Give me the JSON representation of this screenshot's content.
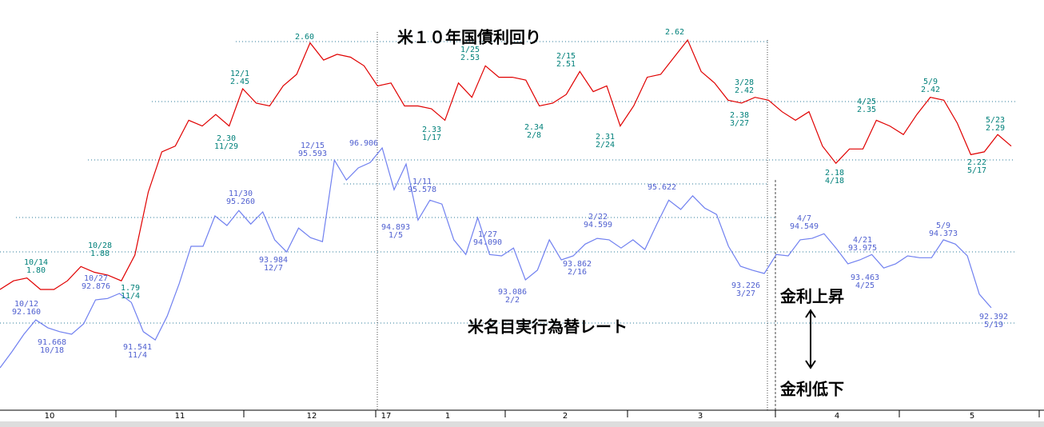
{
  "chart_data": {
    "type": "line",
    "series": [
      {
        "name": "米１０年国債利回り",
        "color": "#e00000",
        "label_color": "#00807a",
        "values": [
          1.74,
          1.77,
          1.78,
          1.74,
          1.74,
          1.77,
          1.82,
          1.8,
          1.79,
          1.77,
          1.86,
          2.08,
          2.22,
          2.24,
          2.33,
          2.31,
          2.35,
          2.31,
          2.44,
          2.39,
          2.38,
          2.45,
          2.49,
          2.6,
          2.54,
          2.56,
          2.55,
          2.52,
          2.45,
          2.46,
          2.38,
          2.38,
          2.37,
          2.33,
          2.46,
          2.41,
          2.52,
          2.48,
          2.48,
          2.47,
          2.38,
          2.39,
          2.42,
          2.5,
          2.43,
          2.45,
          2.31,
          2.38,
          2.48,
          2.49,
          2.55,
          2.61,
          2.5,
          2.46,
          2.4,
          2.39,
          2.41,
          2.4,
          2.36,
          2.33,
          2.36,
          2.24,
          2.18,
          2.23,
          2.23,
          2.33,
          2.31,
          2.28,
          2.35,
          2.41,
          2.4,
          2.32,
          2.21,
          2.22,
          2.28,
          2.24
        ]
      },
      {
        "name": "米名目実行為替レート",
        "color": "#7080f0",
        "label_color": "#5060d0",
        "values": [
          90.76,
          91.21,
          91.7,
          92.1,
          91.88,
          91.77,
          91.7,
          91.99,
          92.66,
          92.7,
          92.84,
          92.59,
          91.77,
          91.54,
          92.21,
          93.11,
          94.16,
          94.16,
          95.01,
          94.74,
          95.16,
          94.78,
          95.12,
          94.34,
          94.0,
          94.67,
          94.4,
          94.29,
          96.57,
          96.01,
          96.35,
          96.5,
          96.91,
          95.74,
          96.46,
          94.89,
          95.45,
          95.34,
          94.34,
          93.93,
          94.96,
          93.93,
          93.89,
          94.11,
          93.22,
          93.49,
          94.34,
          93.78,
          93.89,
          94.22,
          94.38,
          94.34,
          94.11,
          94.34,
          94.07,
          94.78,
          95.45,
          95.19,
          95.57,
          95.23,
          95.05,
          94.16,
          93.6,
          93.49,
          93.4,
          93.93,
          93.89,
          94.34,
          94.38,
          94.51,
          94.11,
          93.67,
          93.78,
          93.93,
          93.55,
          93.67,
          93.89,
          93.84,
          93.84,
          94.34,
          94.22,
          93.89,
          92.82,
          92.44
        ]
      }
    ],
    "x_labels": [
      "10",
      "11",
      "12",
      "17",
      "1",
      "2",
      "3",
      "4",
      "5"
    ],
    "annotations": [
      {
        "series": 0,
        "lines": [
          "10/14",
          "1.80"
        ]
      },
      {
        "series": 0,
        "lines": [
          "10/28",
          "1.88"
        ]
      },
      {
        "series": 0,
        "lines": [
          "1.79",
          "11/4"
        ]
      },
      {
        "series": 0,
        "lines": [
          "12/1",
          "2.45"
        ]
      },
      {
        "series": 0,
        "lines": [
          "2.30",
          "11/29"
        ]
      },
      {
        "series": 0,
        "lines": [
          "2.60"
        ]
      },
      {
        "series": 0,
        "lines": [
          "1/25",
          "2.53"
        ]
      },
      {
        "series": 0,
        "lines": [
          "2.33",
          "1/17"
        ]
      },
      {
        "series": 0,
        "lines": [
          "2/15",
          "2.51"
        ]
      },
      {
        "series": 0,
        "lines": [
          "2.34",
          "2/8"
        ]
      },
      {
        "series": 0,
        "lines": [
          "2.31",
          "2/24"
        ]
      },
      {
        "series": 0,
        "lines": [
          "2.62"
        ]
      },
      {
        "series": 0,
        "lines": [
          "3/28",
          "2.42"
        ]
      },
      {
        "series": 0,
        "lines": [
          "2.38",
          "3/27"
        ]
      },
      {
        "series": 0,
        "lines": [
          "4/25",
          "2.35"
        ]
      },
      {
        "series": 0,
        "lines": [
          "5/9",
          "2.42"
        ]
      },
      {
        "series": 0,
        "lines": [
          "2.18",
          "4/18"
        ]
      },
      {
        "series": 0,
        "lines": [
          "5/23",
          "2.29"
        ]
      },
      {
        "series": 0,
        "lines": [
          "2.22",
          "5/17"
        ]
      },
      {
        "series": 1,
        "lines": [
          "10/12",
          "92.160"
        ]
      },
      {
        "series": 1,
        "lines": [
          "91.668",
          "10/18"
        ]
      },
      {
        "series": 1,
        "lines": [
          "10/27",
          "92.876"
        ]
      },
      {
        "series": 1,
        "lines": [
          "91.541",
          "11/4"
        ]
      },
      {
        "series": 1,
        "lines": [
          "11/30",
          "95.260"
        ]
      },
      {
        "series": 1,
        "lines": [
          "93.984",
          "12/7"
        ]
      },
      {
        "series": 1,
        "lines": [
          "12/15",
          "95.593"
        ]
      },
      {
        "series": 1,
        "lines": [
          "96.906"
        ]
      },
      {
        "series": 1,
        "lines": [
          "1/11",
          "95.578"
        ]
      },
      {
        "series": 1,
        "lines": [
          "94.893",
          "1/5"
        ]
      },
      {
        "series": 1,
        "lines": [
          "1/27",
          "94.090"
        ]
      },
      {
        "series": 1,
        "lines": [
          "93.086",
          "2/2"
        ]
      },
      {
        "series": 1,
        "lines": [
          "2/22",
          "94.599"
        ]
      },
      {
        "series": 1,
        "lines": [
          "93.862",
          "2/16"
        ]
      },
      {
        "series": 1,
        "lines": [
          "95.622"
        ]
      },
      {
        "series": 1,
        "lines": [
          "93.226",
          "3/27"
        ]
      },
      {
        "series": 1,
        "lines": [
          "4/7",
          "94.549"
        ]
      },
      {
        "series": 1,
        "lines": [
          "4/21",
          "93.975"
        ]
      },
      {
        "series": 1,
        "lines": [
          "93.463",
          "4/25"
        ]
      },
      {
        "series": 1,
        "lines": [
          "5/9",
          "94.373"
        ]
      },
      {
        "series": 1,
        "lines": [
          "92.392",
          "5/19"
        ]
      }
    ],
    "notes": {
      "rise": "金利上昇",
      "fall": "金利低下"
    }
  }
}
